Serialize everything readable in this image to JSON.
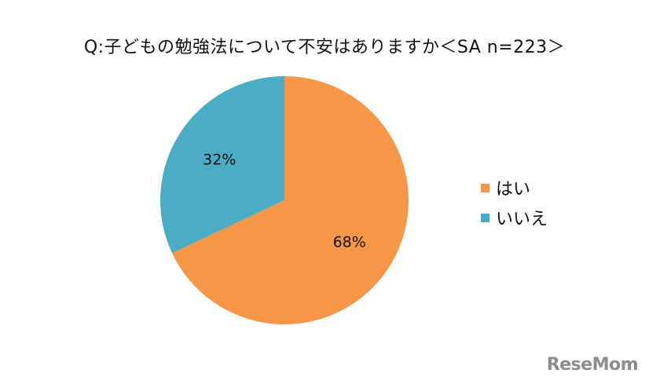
{
  "chart_data": {
    "type": "pie",
    "title": "Q:子どもの勉強法について不安はありますか＜SA n=223＞",
    "slices": [
      {
        "label": "はい",
        "value": 68,
        "display": "68%",
        "color": "#F79646"
      },
      {
        "label": "いいえ",
        "value": 32,
        "display": "32%",
        "color": "#4BACC6"
      }
    ],
    "legend_position": "right"
  },
  "watermark": "ReseMom"
}
